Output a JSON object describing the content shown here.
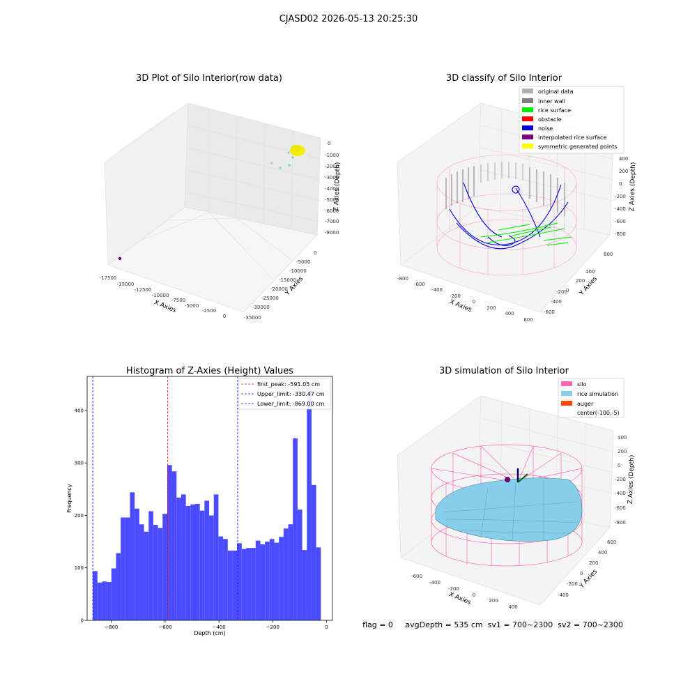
{
  "figure": {
    "suptitle": "CJASD02 2026-05-13 20:25:30",
    "footer": "flag = 0     avgDepth = 535 cm  sv1 = 700~2300  sv2 = 700~2300"
  },
  "panels": {
    "raw": {
      "title": "3D Plot of Silo Interior(row data)",
      "xlabel": "X Axies",
      "ylabel": "Y Axies",
      "zlabel": "Z Axies (Depth)",
      "xticks": [
        "-17500",
        "-15000",
        "-12500",
        "-10000",
        "-7500",
        "-5000",
        "-2500",
        "0"
      ],
      "yticks": [
        "0",
        "-5000",
        "-10000",
        "-15000",
        "-20000",
        "-25000",
        "-30000",
        "-35000"
      ],
      "zticks": [
        "0",
        "-1000",
        "-2000",
        "-3000",
        "-4000",
        "-5000",
        "-6000",
        "-7000",
        "-8000"
      ]
    },
    "classify": {
      "title": "3D classify of Silo Interior",
      "xlabel": "X Axies",
      "ylabel": "Y Axies",
      "zlabel": "Z Axies (Depth)",
      "xticks": [
        "-800",
        "-600",
        "-400",
        "-200",
        "0",
        "200",
        "400",
        "600"
      ],
      "yticks": [
        "600",
        "400",
        "200",
        "0",
        "-200",
        "-400",
        "-600"
      ],
      "zticks": [
        "400",
        "200",
        "0",
        "-200",
        "-400",
        "-600",
        "-800"
      ],
      "legend": [
        {
          "label": "original data",
          "color": "#b0b0b0"
        },
        {
          "label": "inner wall",
          "color": "#808080"
        },
        {
          "label": "rice surface",
          "color": "#00ee00"
        },
        {
          "label": "obstacle",
          "color": "#ff0000"
        },
        {
          "label": "noise",
          "color": "#0000dd"
        },
        {
          "label": "interpolated rice surface",
          "color": "#800080"
        },
        {
          "label": "symmetric generated points",
          "color": "#ffff00"
        }
      ]
    },
    "sim": {
      "title": "3D simulation of Silo Interior",
      "xlabel": "X Axies",
      "ylabel": "Y Axies",
      "zlabel": "Z Axies (Depth)",
      "xticks": [
        "-600",
        "-400",
        "-200",
        "0",
        "200",
        "400"
      ],
      "yticks": [
        "600",
        "400",
        "200",
        "0",
        "-200",
        "-400"
      ],
      "zticks": [
        "400",
        "200",
        "0",
        "-200",
        "-400",
        "-600",
        "-800"
      ],
      "legend": [
        {
          "label": "silo",
          "color": "#ff69b4"
        },
        {
          "label": "rice simulation",
          "color": "#87ceeb"
        },
        {
          "label": "auger",
          "color": "#ff4500"
        },
        {
          "label": "center(-100,-5)",
          "color": ""
        }
      ]
    }
  },
  "chart_data": [
    {
      "type": "bar",
      "title": "Histogram of Z-Axies (Height) Values",
      "xlabel": "Depth (cm)",
      "ylabel": "Frequency",
      "xlim": [
        -890,
        22
      ],
      "ylim": [
        0,
        465
      ],
      "xticks": [
        -800,
        -600,
        -400,
        -200,
        0
      ],
      "yticks": [
        0,
        100,
        200,
        300,
        400
      ],
      "bar_color": "#4b4bff",
      "bins": [
        {
          "x0": -869,
          "x1": -851.7,
          "value": 94
        },
        {
          "x0": -851.7,
          "x1": -834.4,
          "value": 72
        },
        {
          "x0": -834.4,
          "x1": -817.1,
          "value": 74
        },
        {
          "x0": -817.1,
          "x1": -799.8,
          "value": 73
        },
        {
          "x0": -799.8,
          "x1": -782.5,
          "value": 99
        },
        {
          "x0": -782.5,
          "x1": -765.2,
          "value": 128
        },
        {
          "x0": -765.2,
          "x1": -747.9,
          "value": 196
        },
        {
          "x0": -747.9,
          "x1": -730.6,
          "value": 196
        },
        {
          "x0": -730.6,
          "x1": -713.3,
          "value": 244
        },
        {
          "x0": -713.3,
          "x1": -696,
          "value": 213
        },
        {
          "x0": -696,
          "x1": -678.7,
          "value": 183
        },
        {
          "x0": -678.7,
          "x1": -661.4,
          "value": 169
        },
        {
          "x0": -661.4,
          "x1": -644.1,
          "value": 208
        },
        {
          "x0": -644.1,
          "x1": -626.8,
          "value": 182
        },
        {
          "x0": -626.8,
          "x1": -609.5,
          "value": 176
        },
        {
          "x0": -609.5,
          "x1": -592.2,
          "value": 203
        },
        {
          "x0": -592.2,
          "x1": -574.9,
          "value": 296
        },
        {
          "x0": -574.9,
          "x1": -557.6,
          "value": 284
        },
        {
          "x0": -557.6,
          "x1": -540.3,
          "value": 234
        },
        {
          "x0": -540.3,
          "x1": -523,
          "value": 240
        },
        {
          "x0": -523,
          "x1": -505.7,
          "value": 218
        },
        {
          "x0": -505.7,
          "x1": -488.4,
          "value": 221
        },
        {
          "x0": -488.4,
          "x1": -471.1,
          "value": 222
        },
        {
          "x0": -471.1,
          "x1": -453.8,
          "value": 209
        },
        {
          "x0": -453.8,
          "x1": -436.5,
          "value": 228
        },
        {
          "x0": -436.5,
          "x1": -419.2,
          "value": 200
        },
        {
          "x0": -419.2,
          "x1": -401.9,
          "value": 240
        },
        {
          "x0": -401.9,
          "x1": -384.6,
          "value": 160
        },
        {
          "x0": -384.6,
          "x1": -367.3,
          "value": 155
        },
        {
          "x0": -367.3,
          "x1": -350,
          "value": 133
        },
        {
          "x0": -350,
          "x1": -332.7,
          "value": 133
        },
        {
          "x0": -332.7,
          "x1": -315.4,
          "value": 147
        },
        {
          "x0": -315.4,
          "x1": -298.1,
          "value": 136
        },
        {
          "x0": -298.1,
          "x1": -280.8,
          "value": 138
        },
        {
          "x0": -280.8,
          "x1": -263.5,
          "value": 138
        },
        {
          "x0": -263.5,
          "x1": -246.2,
          "value": 152
        },
        {
          "x0": -246.2,
          "x1": -228.9,
          "value": 145
        },
        {
          "x0": -228.9,
          "x1": -211.6,
          "value": 150
        },
        {
          "x0": -211.6,
          "x1": -194.3,
          "value": 155
        },
        {
          "x0": -194.3,
          "x1": -177,
          "value": 148
        },
        {
          "x0": -177,
          "x1": -159.7,
          "value": 159
        },
        {
          "x0": -159.7,
          "x1": -142.4,
          "value": 175
        },
        {
          "x0": -142.4,
          "x1": -125.1,
          "value": 183
        },
        {
          "x0": -125.1,
          "x1": -107.8,
          "value": 347
        },
        {
          "x0": -107.8,
          "x1": -90.5,
          "value": 211
        },
        {
          "x0": -90.5,
          "x1": -73.2,
          "value": 134
        },
        {
          "x0": -73.2,
          "x1": -55.9,
          "value": 440
        },
        {
          "x0": -55.9,
          "x1": -38.6,
          "value": 258
        },
        {
          "x0": -38.6,
          "x1": -21.3,
          "value": 139
        }
      ],
      "vlines": [
        {
          "x": -591.05,
          "color": "#ff0000",
          "label": "first_peak: -591.05 cm"
        },
        {
          "x": -330.47,
          "color": "#0000ff",
          "label": "Upper_limit: -330.47 cm"
        },
        {
          "x": -869.0,
          "color": "#0000ff",
          "label": "Lower_limit: -869.00 cm"
        }
      ],
      "legend_position": "upper right"
    }
  ]
}
